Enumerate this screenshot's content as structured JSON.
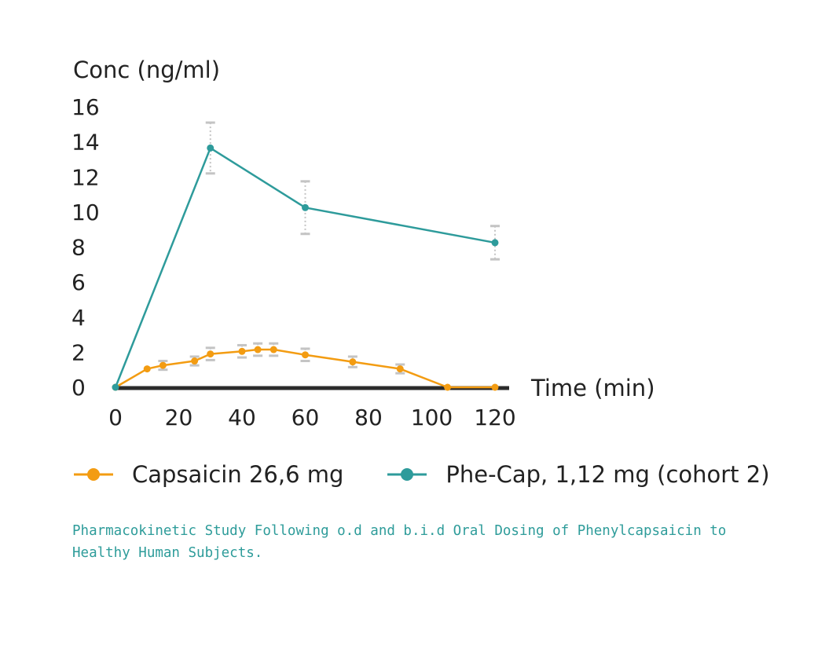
{
  "chart_data": {
    "type": "line",
    "ylabel": "Conc (ng/ml)",
    "xlabel": "Time (min)",
    "xlim": [
      0,
      120
    ],
    "ylim": [
      0,
      16
    ],
    "x_ticks": [
      0,
      20,
      40,
      60,
      80,
      100,
      120
    ],
    "y_ticks": [
      0,
      2,
      4,
      6,
      8,
      10,
      12,
      14,
      16
    ],
    "grid": false,
    "legend_position": "bottom",
    "series": [
      {
        "name": "Capsaicin 26,6 mg",
        "color": "#f39c12",
        "points": [
          {
            "x": 0,
            "y": 0.0,
            "err": 0
          },
          {
            "x": 10,
            "y": 1.05,
            "err": 0
          },
          {
            "x": 15,
            "y": 1.25,
            "err": 0.25
          },
          {
            "x": 25,
            "y": 1.5,
            "err": 0.25
          },
          {
            "x": 30,
            "y": 1.9,
            "err": 0.35
          },
          {
            "x": 40,
            "y": 2.05,
            "err": 0.35
          },
          {
            "x": 45,
            "y": 2.15,
            "err": 0.35
          },
          {
            "x": 50,
            "y": 2.15,
            "err": 0.35
          },
          {
            "x": 60,
            "y": 1.85,
            "err": 0.35
          },
          {
            "x": 75,
            "y": 1.45,
            "err": 0.3
          },
          {
            "x": 90,
            "y": 1.05,
            "err": 0.25
          },
          {
            "x": 105,
            "y": 0.0,
            "err": 0
          },
          {
            "x": 120,
            "y": 0.0,
            "err": 0
          }
        ]
      },
      {
        "name": "Phe-Cap, 1,12 mg (cohort 2)",
        "color": "#2e9b9b",
        "points": [
          {
            "x": 0,
            "y": 0.0,
            "err": 0
          },
          {
            "x": 30,
            "y": 13.65,
            "err": 1.45
          },
          {
            "x": 60,
            "y": 10.25,
            "err": 1.5
          },
          {
            "x": 120,
            "y": 8.25,
            "err": 0.95
          }
        ]
      }
    ]
  },
  "caption": "Pharmacokinetic Study Following o.d and b.i.d Oral Dosing of Phenylcapsaicin to Healthy Human Subjects."
}
